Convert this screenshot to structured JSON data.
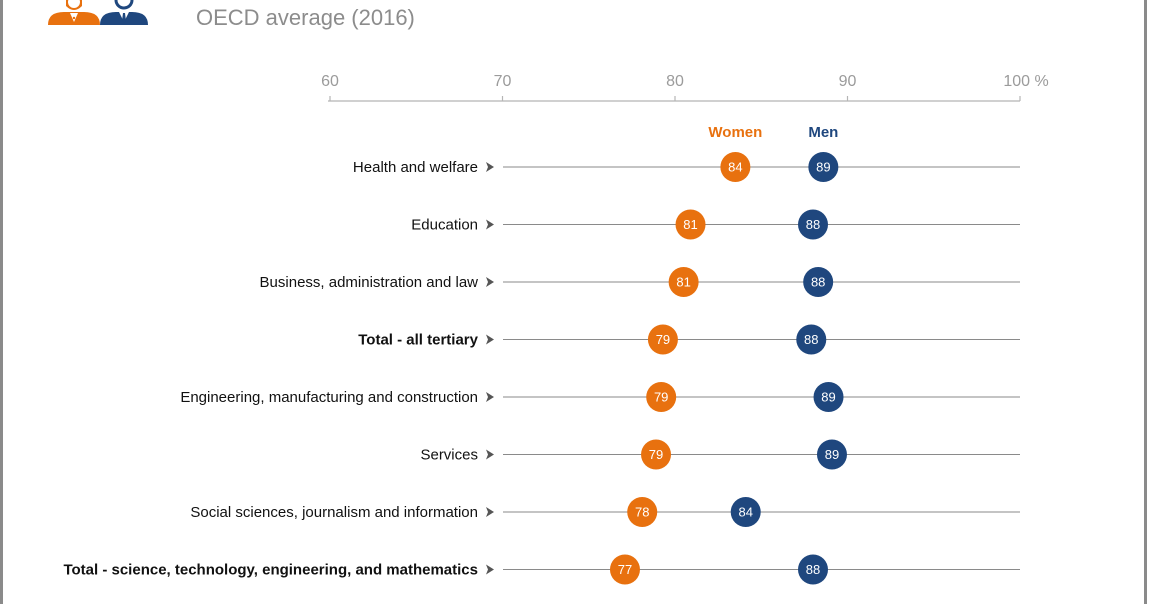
{
  "header": {
    "subtitle": "OECD average (2016)",
    "icons": [
      "woman-icon",
      "man-icon"
    ]
  },
  "colors": {
    "women": "#e8710f",
    "men": "#1f477e",
    "axis": "#b5b5b5",
    "line": "#8a8a8a"
  },
  "chart_data": {
    "type": "dot",
    "title": "OECD average (2016)",
    "xlim": [
      60,
      100
    ],
    "xticks": [
      60,
      70,
      80,
      90,
      100
    ],
    "tick_labels": [
      "60",
      "70",
      "80",
      "90",
      "100 %"
    ],
    "legend": [
      "Women",
      "Men"
    ],
    "categories": [
      "Health and welfare",
      "Education",
      "Business, administration and law",
      "Total - all tertiary",
      "Engineering, manufacturing and construction",
      "Services",
      "Social sciences, journalism and information",
      "Total - science, technology, engineering, and mathematics"
    ],
    "bold": [
      false,
      false,
      false,
      true,
      false,
      false,
      false,
      true
    ],
    "series": [
      {
        "name": "Women",
        "values": [
          84,
          81,
          81,
          79,
          79,
          79,
          78,
          77
        ]
      },
      {
        "name": "Men",
        "values": [
          89,
          88,
          88,
          88,
          89,
          89,
          84,
          88
        ]
      }
    ],
    "positions": {
      "Women": [
        83.5,
        80.9,
        80.5,
        79.3,
        79.2,
        78.9,
        78.1,
        77.1
      ],
      "Men": [
        88.6,
        88.0,
        88.3,
        87.9,
        88.9,
        89.1,
        84.1,
        88.0
      ]
    }
  }
}
